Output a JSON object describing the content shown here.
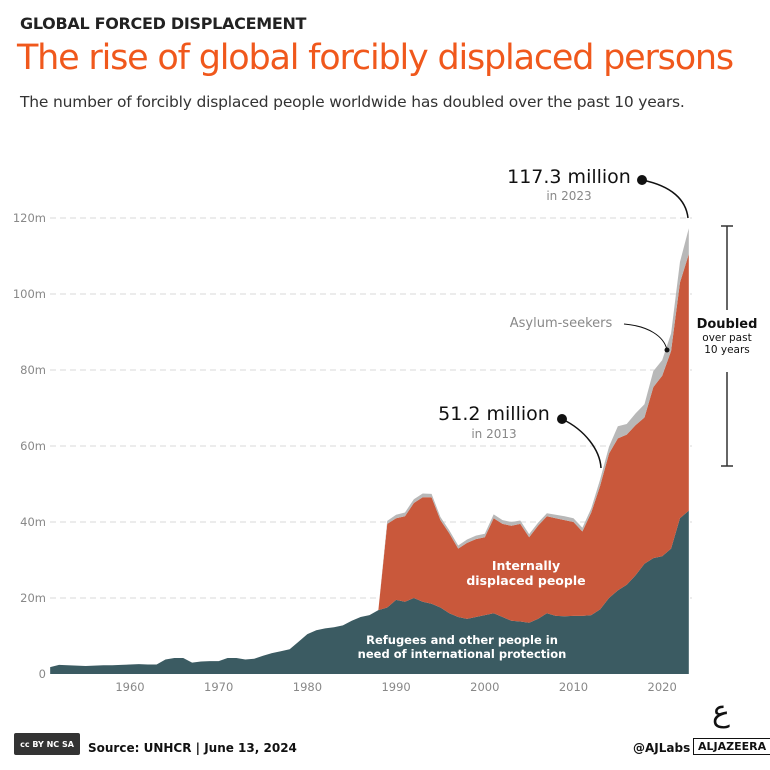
{
  "header": {
    "kicker": "GLOBAL FORCED DISPLACEMENT",
    "title": "The rise of global forcibly displaced persons",
    "subtitle": "The number of forcibly displaced people worldwide has doubled over the past 10 years."
  },
  "chart_data": {
    "type": "area",
    "stacked": true,
    "title": "",
    "xlabel": "",
    "ylabel": "",
    "xlim": [
      1951,
      2023
    ],
    "ylim": [
      0,
      120
    ],
    "grid": true,
    "x_ticks": [
      1960,
      1970,
      1980,
      1990,
      2000,
      2010,
      2020
    ],
    "y_ticks": [
      0,
      20,
      40,
      60,
      80,
      100,
      120
    ],
    "y_tick_labels": [
      "0",
      "20m",
      "40m",
      "60m",
      "80m",
      "100m",
      "120m"
    ],
    "years_start": 1951,
    "series": [
      {
        "name": "Refugees and other people in need of international protection",
        "color": "#3b5b62",
        "values": [
          1.8,
          2.4,
          2.3,
          2.2,
          2.1,
          2.2,
          2.3,
          2.3,
          2.4,
          2.5,
          2.6,
          2.5,
          2.5,
          3.8,
          4.2,
          4.2,
          3.0,
          3.3,
          3.4,
          3.4,
          4.2,
          4.2,
          3.8,
          4.0,
          4.8,
          5.5,
          6.0,
          6.5,
          8.5,
          10.5,
          11.5,
          12.0,
          12.3,
          12.8,
          14.0,
          15.0,
          15.5,
          16.8,
          17.5,
          19.5,
          19.0,
          20.0,
          19.0,
          18.5,
          17.5,
          16.0,
          15.0,
          14.5,
          15.0,
          15.5,
          16.0,
          15.0,
          14.0,
          13.8,
          13.5,
          14.5,
          16.0,
          15.3,
          15.2,
          15.3,
          15.3,
          15.5,
          17.0,
          20.0,
          22.0,
          23.5,
          26.0,
          29.0,
          30.5,
          31.0,
          33.0,
          41.0,
          43.0
        ]
      },
      {
        "name": "Internally displaced people",
        "color": "#c9583b",
        "values": [
          0,
          0,
          0,
          0,
          0,
          0,
          0,
          0,
          0,
          0,
          0,
          0,
          0,
          0,
          0,
          0,
          0,
          0,
          0,
          0,
          0,
          0,
          0,
          0,
          0,
          0,
          0,
          0,
          0,
          0,
          0,
          0,
          0,
          0,
          0,
          0,
          0,
          0,
          22,
          21.5,
          22.5,
          25,
          27.5,
          28,
          23,
          21,
          18,
          20,
          20.5,
          20.5,
          25,
          24.5,
          25,
          25.7,
          22.5,
          24.5,
          25.5,
          25.7,
          25.3,
          24.7,
          22.2,
          27,
          32.5,
          38,
          40,
          39.5,
          39.5,
          38.5,
          45,
          47.5,
          52,
          62,
          67.5
        ]
      },
      {
        "name": "Asylum-seekers",
        "color": "#b8b8b8",
        "values": [
          0,
          0,
          0,
          0,
          0,
          0,
          0,
          0,
          0,
          0,
          0,
          0,
          0,
          0,
          0,
          0,
          0,
          0,
          0,
          0,
          0,
          0,
          0,
          0,
          0,
          0,
          0,
          0,
          0,
          0,
          0,
          0,
          0,
          0,
          0,
          0,
          0,
          0,
          0.8,
          0.9,
          1.0,
          1.0,
          1.0,
          0.9,
          0.8,
          0.8,
          0.8,
          0.9,
          0.9,
          0.9,
          1.0,
          1.0,
          1.0,
          0.9,
          0.8,
          0.8,
          0.8,
          0.9,
          1.0,
          1.0,
          1.0,
          1.1,
          1.7,
          1.8,
          3.2,
          2.8,
          3.1,
          3.5,
          4.2,
          4.1,
          4.6,
          5.4,
          6.8
        ]
      }
    ],
    "annotations": {
      "peak_value": "117.3 million",
      "peak_year": "in 2023",
      "mid_value": "51.2 million",
      "mid_year": "in 2013",
      "asylum_label": "Asylum-seekers",
      "idp_label_1": "Internally",
      "idp_label_2": "displaced people",
      "refugee_label_1": "Refugees and other people in",
      "refugee_label_2": "need of international protection",
      "doubled_1": "Doubled",
      "doubled_2": "over past",
      "doubled_3": "10 years"
    }
  },
  "footer": {
    "license": "cc BY NC SA",
    "source": "Source: UNHCR  |  June 13, 2024",
    "handle": "@AJLabs",
    "brand": "ALJAZEERA"
  }
}
